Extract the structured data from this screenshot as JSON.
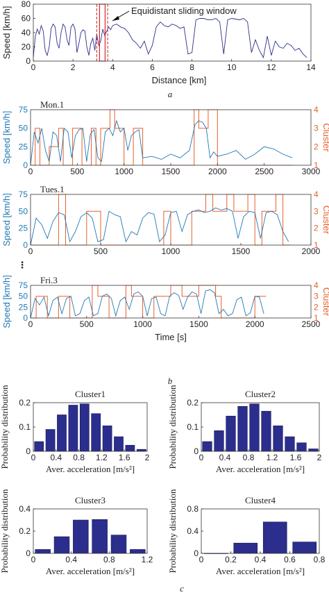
{
  "panel_labels": {
    "a": "a",
    "b": "b",
    "c": "c"
  },
  "ellipsis": "⋮",
  "colors": {
    "blue": "#1f77b4",
    "orange": "#e8602c",
    "navy": "#2b2e8c",
    "red": "#d62728"
  },
  "chart_data": [
    {
      "id": "a",
      "type": "line",
      "xlabel": "Distance [km]",
      "ylabel": "Speed [km/h]",
      "xlim": [
        0,
        14
      ],
      "ylim": [
        0,
        80
      ],
      "xticks": [
        0,
        2,
        4,
        6,
        8,
        10,
        12,
        14
      ],
      "yticks": [
        0,
        20,
        40,
        60,
        80
      ],
      "annotation": "Equidistant sliding window",
      "window": [
        3.2,
        3.75
      ],
      "series": [
        {
          "x": [
            0,
            0.1,
            0.2,
            0.3,
            0.4,
            0.5,
            0.6,
            0.7,
            0.8,
            0.9,
            1.0,
            1.1,
            1.2,
            1.3,
            1.4,
            1.5,
            1.6,
            1.7,
            1.8,
            1.9,
            2.0,
            2.1,
            2.2,
            2.3,
            2.4,
            2.5,
            2.6,
            2.7,
            2.8,
            2.9,
            3.0,
            3.1,
            3.2,
            3.3,
            3.4,
            3.5,
            3.6,
            3.7,
            3.8,
            3.9,
            4.0,
            4.2,
            4.4,
            4.6,
            4.8,
            5.0,
            5.2,
            5.4,
            5.6,
            5.8,
            6.0,
            6.2,
            6.4,
            6.6,
            6.8,
            7.0,
            7.2,
            7.4,
            7.6,
            7.8,
            8.0,
            8.2,
            8.4,
            8.6,
            8.8,
            9.0,
            9.2,
            9.4,
            9.6,
            9.8,
            10.0,
            10.2,
            10.4,
            10.6,
            10.8,
            11.0,
            11.2,
            11.4,
            11.6,
            11.8,
            12.0,
            12.2,
            12.4,
            12.6,
            12.8,
            13.0,
            13.2,
            13.4,
            13.6,
            13.8
          ],
          "y": [
            5,
            35,
            45,
            38,
            50,
            42,
            15,
            8,
            20,
            46,
            52,
            48,
            25,
            18,
            40,
            52,
            48,
            30,
            22,
            48,
            52,
            45,
            12,
            25,
            40,
            44,
            42,
            20,
            8,
            25,
            32,
            15,
            38,
            22,
            28,
            45,
            36,
            42,
            48,
            44,
            50,
            52,
            48,
            46,
            40,
            30,
            25,
            18,
            28,
            10,
            22,
            48,
            55,
            50,
            48,
            52,
            50,
            46,
            48,
            10,
            12,
            58,
            60,
            60,
            58,
            58,
            60,
            55,
            10,
            58,
            60,
            59,
            58,
            60,
            55,
            12,
            30,
            15,
            5,
            35,
            8,
            28,
            20,
            18,
            25,
            22,
            15,
            18,
            10,
            5
          ]
        }
      ]
    },
    {
      "id": "b1",
      "type": "line",
      "title": "Mon.1",
      "ylabel": "Speed [km/h]",
      "y2label": "Cluster",
      "xlim": [
        0,
        3000
      ],
      "ylim": [
        0,
        75
      ],
      "y2lim": [
        1,
        4
      ],
      "xticks": [
        0,
        500,
        1000,
        1500,
        2000,
        2500,
        3000
      ],
      "yticks": [
        0,
        25,
        50,
        75
      ],
      "y2ticks": [
        1,
        2,
        3,
        4
      ],
      "series": [
        {
          "x": [
            0,
            40,
            80,
            120,
            160,
            200,
            240,
            280,
            320,
            360,
            400,
            440,
            480,
            520,
            560,
            600,
            640,
            680,
            720,
            760,
            800,
            840,
            880,
            920,
            960,
            1000,
            1040,
            1080,
            1120,
            1160,
            1200,
            1300,
            1400,
            1500,
            1600,
            1700,
            1760,
            1800,
            1840,
            1880,
            1920,
            1960,
            2000,
            2100,
            2200,
            2300,
            2400,
            2500,
            2600,
            2700,
            2800
          ],
          "y": [
            0,
            45,
            30,
            50,
            20,
            5,
            45,
            40,
            5,
            50,
            45,
            10,
            40,
            48,
            50,
            5,
            42,
            48,
            10,
            5,
            45,
            50,
            40,
            60,
            45,
            50,
            20,
            40,
            45,
            48,
            10,
            12,
            8,
            15,
            10,
            20,
            55,
            60,
            58,
            50,
            10,
            18,
            12,
            15,
            20,
            8,
            15,
            25,
            22,
            15,
            10
          ]
        },
        {
          "x": [
            0,
            50,
            50,
            100,
            100,
            200,
            200,
            300,
            300,
            350,
            350,
            450,
            450,
            550,
            550,
            650,
            650,
            700,
            700,
            750,
            750,
            850,
            850,
            900,
            900,
            1000,
            1000,
            1100,
            1100,
            1200,
            1200,
            1750,
            1750,
            1800,
            1800,
            1900,
            1900,
            2000,
            2000,
            2800
          ],
          "y": [
            1,
            1,
            3,
            3,
            1,
            1,
            2,
            2,
            3,
            3,
            1,
            1,
            3,
            3,
            1,
            1,
            3,
            3,
            1,
            1,
            3,
            3,
            4,
            4,
            3,
            3,
            1,
            1,
            3,
            3,
            1,
            1,
            4,
            4,
            3,
            3,
            4,
            4,
            1,
            1
          ]
        }
      ]
    },
    {
      "id": "b2",
      "type": "line",
      "title": "Tues.1",
      "ylabel": "Speed [km/h]",
      "y2label": "Cluster",
      "xlim": [
        0,
        2000
      ],
      "ylim": [
        0,
        75
      ],
      "y2lim": [
        1,
        4
      ],
      "xticks": [
        0,
        500,
        1000,
        1500,
        2000
      ],
      "yticks": [
        0,
        25,
        50,
        75
      ],
      "y2ticks": [
        1,
        2,
        3,
        4
      ],
      "series": [
        {
          "x": [
            0,
            40,
            80,
            120,
            160,
            200,
            240,
            280,
            320,
            360,
            400,
            440,
            480,
            520,
            560,
            600,
            640,
            680,
            720,
            760,
            800,
            840,
            880,
            920,
            960,
            1000,
            1040,
            1080,
            1120,
            1160,
            1200,
            1240,
            1280,
            1320,
            1360,
            1400,
            1440,
            1480,
            1520,
            1560,
            1600,
            1640,
            1680,
            1720,
            1760,
            1800,
            1840
          ],
          "y": [
            0,
            40,
            30,
            10,
            35,
            48,
            45,
            5,
            20,
            42,
            48,
            40,
            5,
            8,
            50,
            45,
            42,
            5,
            20,
            15,
            40,
            48,
            46,
            5,
            15,
            48,
            50,
            20,
            45,
            50,
            52,
            48,
            50,
            55,
            52,
            54,
            50,
            10,
            42,
            50,
            48,
            10,
            48,
            50,
            45,
            20,
            5
          ]
        },
        {
          "x": [
            0,
            200,
            200,
            250,
            250,
            400,
            400,
            500,
            500,
            950,
            950,
            1000,
            1000,
            1150,
            1150,
            1250,
            1250,
            1300,
            1300,
            1400,
            1400,
            1450,
            1450,
            1550,
            1550,
            1600,
            1600,
            1650,
            1650,
            1750,
            1750,
            1800,
            1800,
            1850
          ],
          "y": [
            1,
            1,
            4,
            4,
            1,
            1,
            3,
            3,
            1,
            1,
            3,
            3,
            1,
            1,
            3,
            3,
            4,
            4,
            3,
            3,
            4,
            4,
            3,
            3,
            4,
            4,
            1,
            1,
            3,
            3,
            4,
            4,
            1,
            1
          ]
        }
      ]
    },
    {
      "id": "b3",
      "type": "line",
      "title": "Fri.3",
      "ylabel": "Speed [km/h]",
      "y2label": "Cluster",
      "xlabel": "Time [s]",
      "xlim": [
        0,
        2500
      ],
      "ylim": [
        0,
        75
      ],
      "y2lim": [
        1,
        4
      ],
      "xticks": [
        0,
        500,
        1000,
        1500,
        2000,
        2500
      ],
      "yticks": [
        0,
        25,
        50,
        75
      ],
      "y2ticks": [
        1,
        2,
        3,
        4
      ],
      "series": [
        {
          "x": [
            0,
            40,
            80,
            120,
            160,
            200,
            240,
            280,
            320,
            360,
            400,
            440,
            480,
            520,
            560,
            600,
            640,
            680,
            720,
            760,
            800,
            840,
            880,
            920,
            960,
            1000,
            1040,
            1080,
            1120,
            1160,
            1200,
            1240,
            1280,
            1320,
            1360,
            1400,
            1440,
            1480,
            1520,
            1560,
            1600,
            1640,
            1680,
            1720,
            1760,
            1800,
            1840,
            1880,
            1920,
            1960,
            2000,
            2040,
            2080
          ],
          "y": [
            0,
            45,
            30,
            48,
            5,
            40,
            48,
            10,
            45,
            50,
            5,
            10,
            40,
            48,
            5,
            10,
            50,
            55,
            45,
            5,
            40,
            48,
            20,
            55,
            60,
            50,
            5,
            45,
            48,
            10,
            5,
            50,
            58,
            52,
            20,
            48,
            60,
            55,
            10,
            62,
            65,
            58,
            10,
            20,
            5,
            10,
            42,
            48,
            5,
            12,
            50,
            48,
            10
          ]
        },
        {
          "x": [
            0,
            50,
            50,
            150,
            150,
            250,
            250,
            350,
            350,
            550,
            550,
            600,
            600,
            700,
            700,
            850,
            850,
            900,
            900,
            1000,
            1000,
            1100,
            1100,
            1250,
            1250,
            1350,
            1350,
            1500,
            1500,
            1650,
            1650,
            1700,
            1700,
            2000,
            2000,
            2100
          ],
          "y": [
            1,
            1,
            3,
            3,
            1,
            1,
            3,
            3,
            1,
            1,
            4,
            4,
            3,
            3,
            1,
            1,
            4,
            4,
            3,
            3,
            1,
            1,
            3,
            3,
            4,
            4,
            3,
            3,
            4,
            4,
            3,
            3,
            1,
            1,
            3,
            3
          ]
        }
      ]
    },
    {
      "id": "c1",
      "type": "bar",
      "title": "Cluster1",
      "xlabel": "Aver. acceleration [m/s²]",
      "ylabel": "Probability distribution",
      "x": [
        0.0,
        0.2,
        0.4,
        0.6,
        0.8,
        1.0,
        1.2,
        1.4,
        1.6,
        1.8
      ],
      "values": [
        0.04,
        0.09,
        0.15,
        0.19,
        0.195,
        0.155,
        0.105,
        0.06,
        0.025,
        0.008
      ],
      "xlim": [
        0,
        2
      ],
      "ylim": [
        0,
        0.2
      ],
      "xticks": [
        "0",
        "0.4",
        "0.8",
        "1.2",
        "1.6",
        "2"
      ],
      "yticks": [
        "0",
        "0.1",
        "0.2"
      ]
    },
    {
      "id": "c2",
      "type": "bar",
      "title": "Cluster2",
      "xlabel": "Aver. acceleration [m/s²]",
      "ylabel": "Probability distribution",
      "x": [
        0.0,
        0.2,
        0.4,
        0.6,
        0.8,
        1.0,
        1.2,
        1.4,
        1.6,
        1.8
      ],
      "values": [
        0.04,
        0.085,
        0.145,
        0.185,
        0.195,
        0.165,
        0.105,
        0.06,
        0.035,
        0.01
      ],
      "xlim": [
        0,
        2
      ],
      "ylim": [
        0,
        0.2
      ],
      "xticks": [
        "0",
        "0.4",
        "0.8",
        "1.2",
        "1.6",
        "2"
      ],
      "yticks": [
        "0",
        "0.1",
        "0.2"
      ]
    },
    {
      "id": "c3",
      "type": "bar",
      "title": "Cluster3",
      "xlabel": "Aver. acceleration [m/s²]",
      "ylabel": "Probability distribution",
      "x": [
        0.0,
        0.2,
        0.4,
        0.6,
        0.8,
        1.0
      ],
      "values": [
        0.035,
        0.15,
        0.3,
        0.305,
        0.165,
        0.035
      ],
      "xlim": [
        0,
        1.2
      ],
      "ylim": [
        0,
        0.4
      ],
      "xticks": [
        "0",
        "0.4",
        "0.8",
        "1.2"
      ],
      "yticks": [
        "0",
        "0.2",
        "0.4"
      ]
    },
    {
      "id": "c4",
      "type": "bar",
      "title": "Cluster4",
      "xlabel": "Aver. acceleration [m/s²]",
      "ylabel": "Probability distribution",
      "x": [
        0.0,
        0.2,
        0.4,
        0.6
      ],
      "values": [
        0.0,
        0.185,
        0.565,
        0.205
      ],
      "xlim": [
        0,
        0.8
      ],
      "ylim": [
        0,
        0.8
      ],
      "xticks": [
        "0",
        "0.2",
        "0.4",
        "0.6",
        "0.8"
      ],
      "yticks": [
        "0",
        "0.4",
        "0.8"
      ]
    }
  ]
}
